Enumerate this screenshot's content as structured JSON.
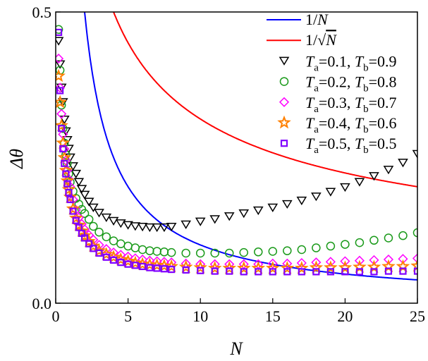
{
  "chart_data": {
    "type": "scatter",
    "xlabel": "N",
    "ylabel": "Δθ",
    "xlim": [
      0,
      25
    ],
    "ylim": [
      0.0,
      0.5
    ],
    "xticks": [
      "0",
      "5",
      "10",
      "15",
      "20",
      "25"
    ],
    "yticks": [
      "0.0",
      "0.5"
    ],
    "grid": false,
    "legend_position": "top-right",
    "lines": [
      {
        "name": "1/N",
        "formula": "1/N",
        "color": "#0000ff"
      },
      {
        "name": "1/√N",
        "formula": "1/sqrt(N)",
        "color": "#ff0000"
      }
    ],
    "x": [
      0.2,
      0.3,
      0.4,
      0.5,
      0.6,
      0.7,
      0.8,
      0.9,
      1.0,
      1.2,
      1.4,
      1.6,
      1.8,
      2.0,
      2.3,
      2.6,
      3.0,
      3.5,
      4.0,
      4.5,
      5,
      5.5,
      6,
      6.5,
      7,
      7.5,
      8,
      9,
      10,
      11,
      12,
      13,
      14,
      15,
      16,
      17,
      18,
      19,
      20,
      21,
      22,
      23,
      24,
      25
    ],
    "series": [
      {
        "name": "T_a=0.1, T_b=0.9",
        "marker": "triangle-down",
        "color": "#000000",
        "values": [
          0.45,
          0.41,
          0.37,
          0.345,
          0.315,
          0.295,
          0.28,
          0.265,
          0.25,
          0.235,
          0.222,
          0.208,
          0.196,
          0.186,
          0.174,
          0.164,
          0.155,
          0.147,
          0.141,
          0.137,
          0.134,
          0.132,
          0.131,
          0.13,
          0.13,
          0.13,
          0.131,
          0.135,
          0.14,
          0.144,
          0.149,
          0.154,
          0.159,
          0.164,
          0.17,
          0.176,
          0.183,
          0.191,
          0.199,
          0.208,
          0.218,
          0.229,
          0.241,
          0.256
        ]
      },
      {
        "name": "T_a=0.2, T_b=0.8",
        "marker": "circle",
        "color": "#1a9a1a",
        "values": [
          0.47,
          0.4,
          0.34,
          0.3,
          0.275,
          0.255,
          0.24,
          0.222,
          0.208,
          0.192,
          0.18,
          0.17,
          0.161,
          0.154,
          0.144,
          0.132,
          0.122,
          0.114,
          0.107,
          0.102,
          0.098,
          0.095,
          0.092,
          0.09,
          0.089,
          0.088,
          0.087,
          0.086,
          0.086,
          0.086,
          0.086,
          0.087,
          0.088,
          0.089,
          0.09,
          0.092,
          0.095,
          0.098,
          0.101,
          0.104,
          0.108,
          0.112,
          0.116,
          0.121
        ]
      },
      {
        "name": "T_a=0.3, T_b=0.7",
        "marker": "diamond",
        "color": "#ff00ff",
        "values": [
          0.42,
          0.37,
          0.325,
          0.29,
          0.265,
          0.245,
          0.228,
          0.213,
          0.2,
          0.178,
          0.16,
          0.147,
          0.136,
          0.127,
          0.117,
          0.109,
          0.1,
          0.093,
          0.087,
          0.083,
          0.08,
          0.077,
          0.075,
          0.073,
          0.072,
          0.071,
          0.07,
          0.068,
          0.067,
          0.067,
          0.067,
          0.067,
          0.067,
          0.068,
          0.068,
          0.069,
          0.07,
          0.071,
          0.072,
          0.073,
          0.074,
          0.075,
          0.076,
          0.077
        ]
      },
      {
        "name": "T_a=0.4, T_b=0.6",
        "marker": "star",
        "color": "#ff8000",
        "values": [
          0.39,
          0.345,
          0.305,
          0.275,
          0.25,
          0.228,
          0.21,
          0.195,
          0.182,
          0.162,
          0.146,
          0.134,
          0.124,
          0.116,
          0.106,
          0.098,
          0.09,
          0.084,
          0.079,
          0.075,
          0.072,
          0.069,
          0.067,
          0.066,
          0.065,
          0.064,
          0.063,
          0.062,
          0.061,
          0.06,
          0.06,
          0.06,
          0.06,
          0.06,
          0.06,
          0.06,
          0.061,
          0.061,
          0.061,
          0.062,
          0.062,
          0.063,
          0.063,
          0.064
        ]
      },
      {
        "name": "T_a=0.5, T_b=0.5",
        "marker": "square",
        "color": "#8000ff",
        "values": [
          0.465,
          0.365,
          0.3,
          0.265,
          0.24,
          0.222,
          0.205,
          0.19,
          0.178,
          0.158,
          0.142,
          0.13,
          0.12,
          0.112,
          0.102,
          0.094,
          0.086,
          0.079,
          0.074,
          0.07,
          0.067,
          0.065,
          0.063,
          0.061,
          0.06,
          0.059,
          0.058,
          0.057,
          0.056,
          0.055,
          0.055,
          0.054,
          0.054,
          0.054,
          0.054,
          0.054,
          0.054,
          0.054,
          0.054,
          0.054,
          0.054,
          0.055,
          0.055,
          0.055
        ]
      }
    ]
  }
}
